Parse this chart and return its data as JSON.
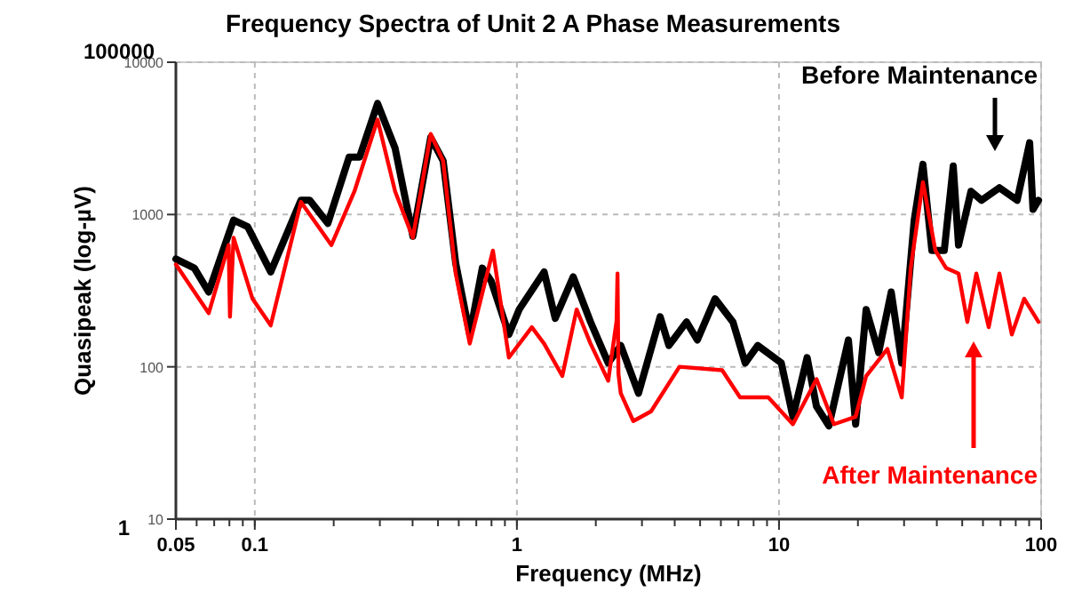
{
  "chart_data": {
    "type": "line",
    "title": "Frequency Spectra of Unit 2 A Phase Measurements",
    "xlabel": "Frequency (MHz)",
    "ylabel": "Quasipeak (log-µV)",
    "log": "xy",
    "grid": true,
    "xlim": [
      0.05,
      100
    ],
    "ylim": [
      10,
      10000
    ],
    "xticks": [
      0.05,
      0.1,
      1,
      10,
      100
    ],
    "yticks": [
      10,
      100,
      1000,
      10000
    ],
    "annotations": [
      "100000",
      "1"
    ],
    "series": [
      {
        "name": "Before Maintenance",
        "color": "#000000",
        "x": [
          0.05,
          0.0588,
          0.0667,
          0.083,
          0.094,
          0.115,
          0.15,
          0.162,
          0.19,
          0.229,
          0.251,
          0.294,
          0.343,
          0.401,
          0.469,
          0.523,
          0.584,
          0.661,
          0.738,
          0.798,
          0.932,
          1.02,
          1.27,
          1.4,
          1.64,
          1.91,
          2.23,
          2.49,
          2.91,
          3.52,
          3.8,
          4.44,
          4.88,
          5.7,
          6.67,
          7.43,
          8.3,
          10.2,
          11.3,
          12.8,
          13.9,
          15.5,
          18.4,
          19.6,
          21.5,
          24,
          26.8,
          29.4,
          32.8,
          35.4,
          38.3,
          42.7,
          46.2,
          48.4,
          54,
          59.3,
          69.3,
          81,
          90.4,
          93.1,
          97.7
        ],
        "values": [
          510,
          445,
          310,
          920,
          830,
          420,
          1240,
          1240,
          875,
          2380,
          2380,
          5360,
          2725,
          720,
          3200,
          2255,
          480,
          163,
          445,
          365,
          163,
          238,
          420,
          208,
          390,
          197,
          106,
          138,
          67,
          213,
          138,
          197,
          150,
          280,
          197,
          106,
          138,
          106,
          47,
          115,
          55,
          41,
          150,
          42,
          238,
          124,
          310,
          106,
          920,
          2135,
          580,
          580,
          2080,
          630,
          1420,
          1240,
          1500,
          1240,
          2960,
          1080,
          1240
        ]
      },
      {
        "name": "After Maintenance",
        "color": "#ff0000",
        "x": [
          0.05,
          0.0667,
          0.0795,
          0.0804,
          0.083,
          0.098,
          0.115,
          0.15,
          0.196,
          0.24,
          0.294,
          0.343,
          0.401,
          0.469,
          0.523,
          0.584,
          0.661,
          0.81,
          0.932,
          1.14,
          1.27,
          1.49,
          1.69,
          1.91,
          2.23,
          2.4,
          2.42,
          2.44,
          2.49,
          2.78,
          3.25,
          4.17,
          6.07,
          7.1,
          9.1,
          11.3,
          13.9,
          16.2,
          19.6,
          21.5,
          25.9,
          29.4,
          31.8,
          35.4,
          39.5,
          43.4,
          48.4,
          52.3,
          56.6,
          63.1,
          69.3,
          77.3,
          86.2,
          97.7
        ],
        "values": [
          470,
          225,
          630,
          213,
          705,
          280,
          187,
          1210,
          630,
          1420,
          4200,
          1420,
          705,
          3380,
          2255,
          410,
          142,
          580,
          115,
          182,
          142,
          87,
          238,
          142,
          81,
          200,
          410,
          90,
          67,
          44,
          51,
          100,
          95,
          63,
          63,
          42,
          83,
          42,
          47,
          87,
          131,
          63,
          445,
          1630,
          580,
          445,
          410,
          197,
          410,
          182,
          410,
          163,
          280,
          197
        ]
      }
    ]
  }
}
